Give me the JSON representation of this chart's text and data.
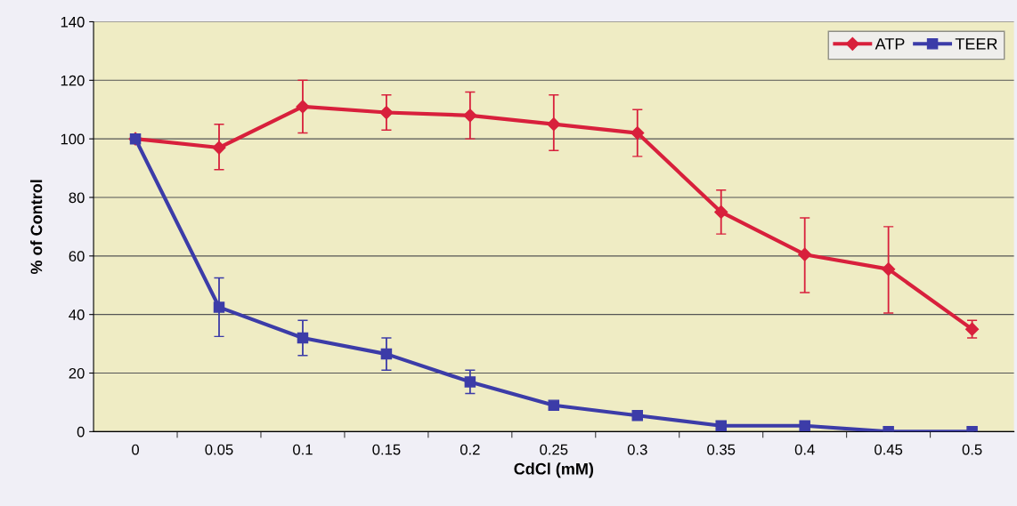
{
  "chart_data": {
    "type": "line",
    "xlabel": "CdCl (mM)",
    "ylabel": "% of Control",
    "categories": [
      "0",
      "0.05",
      "0.1",
      "0.15",
      "0.2",
      "0.25",
      "0.3",
      "0.35",
      "0.4",
      "0.45",
      "0.5"
    ],
    "series": [
      {
        "name": "ATP",
        "color": "#d8203c",
        "marker": "diamond",
        "values": [
          100,
          97,
          111,
          109,
          108,
          105,
          102,
          75,
          60.5,
          55.5,
          35
        ],
        "errors": [
          null,
          [
            89.5,
            105
          ],
          [
            102,
            120
          ],
          [
            103,
            115
          ],
          [
            100,
            116
          ],
          [
            96,
            115
          ],
          [
            94,
            110
          ],
          [
            67.5,
            82.5
          ],
          [
            47.5,
            73
          ],
          [
            40.5,
            70
          ],
          [
            32,
            38
          ]
        ]
      },
      {
        "name": "TEER",
        "color": "#3c3ca8",
        "marker": "square",
        "values": [
          100,
          42.5,
          32,
          26.5,
          17,
          9,
          5.5,
          2,
          2,
          0,
          0
        ],
        "errors": [
          null,
          [
            32.5,
            52.5
          ],
          [
            26,
            38
          ],
          [
            21,
            32
          ],
          [
            13,
            21
          ],
          null,
          null,
          null,
          null,
          null,
          null
        ]
      }
    ],
    "ylim": [
      0,
      140
    ],
    "yticks": [
      0,
      20,
      40,
      60,
      80,
      100,
      120,
      140
    ],
    "grid": "y",
    "legend": "top right"
  }
}
